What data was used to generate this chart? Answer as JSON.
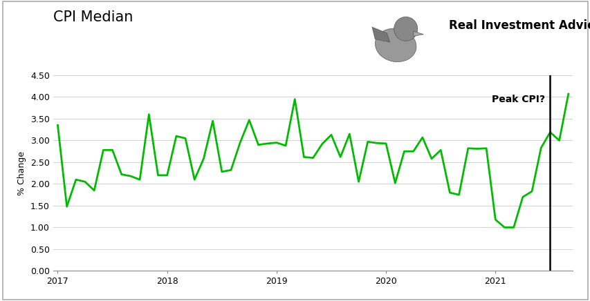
{
  "title": "CPI Median",
  "ylabel": "% Change",
  "brand_text": "Real Investment Advice",
  "line_color": "#00BB00",
  "vline_color": "black",
  "background_color": "#ffffff",
  "plot_bg_color": "#ffffff",
  "title_fontsize": 15,
  "ylabel_fontsize": 9,
  "tick_fontsize": 9,
  "brand_fontsize": 12,
  "ylim": [
    0.0,
    4.5
  ],
  "yticks": [
    0.0,
    0.5,
    1.0,
    1.5,
    2.0,
    2.5,
    3.0,
    3.5,
    4.0,
    4.5
  ],
  "vline_x": 54,
  "vline_label": "Peak CPI?",
  "values": [
    3.35,
    1.48,
    2.1,
    2.05,
    1.85,
    2.78,
    2.78,
    2.22,
    2.18,
    2.1,
    3.6,
    2.2,
    2.2,
    3.1,
    3.05,
    2.1,
    2.58,
    3.45,
    2.28,
    2.32,
    2.95,
    3.47,
    2.9,
    2.93,
    2.95,
    2.88,
    3.95,
    2.62,
    2.6,
    2.92,
    3.13,
    2.62,
    3.15,
    2.05,
    2.97,
    2.94,
    2.93,
    2.02,
    2.75,
    2.75,
    3.07,
    2.58,
    2.78,
    1.8,
    1.75,
    2.82,
    2.81,
    2.82,
    1.18,
    1.0,
    1.0,
    1.7,
    1.83,
    2.83,
    3.19,
    3.0,
    4.07
  ],
  "xtick_positions": [
    0,
    12,
    24,
    36,
    48
  ],
  "xtick_labels": [
    "2017",
    "2018",
    "2019",
    "2020",
    "2021"
  ],
  "outer_border_color": "#aaaaaa",
  "grid_color": "#d0d0d0",
  "vline_label_fontsize": 10
}
